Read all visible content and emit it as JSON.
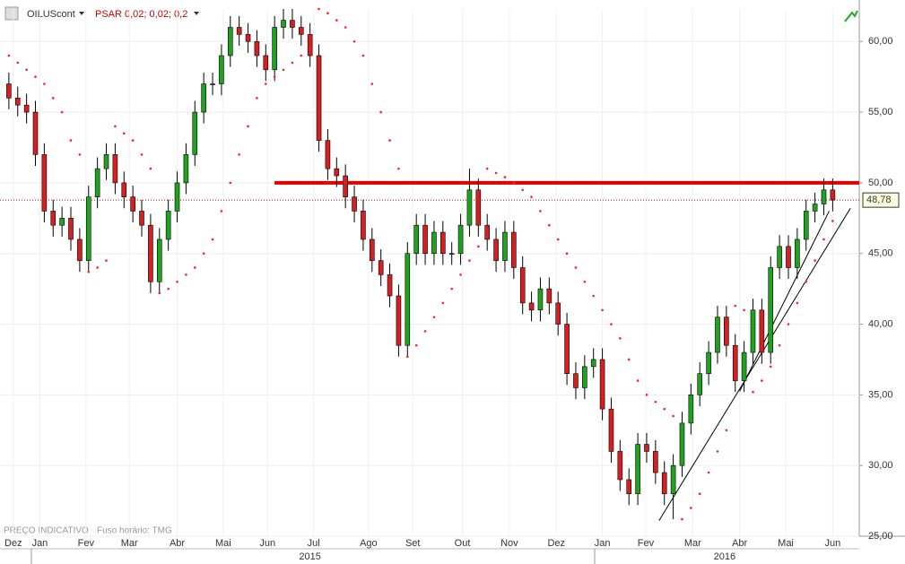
{
  "chart_data": {
    "type": "candlestick",
    "title": "OILUScont",
    "indicator": "PSAR 0,02; 0,02; 0,2",
    "note": "PREÇO INDICATIVO",
    "timezone": "Fuso horário: TMG",
    "x": [
      0,
      1,
      2,
      3,
      4,
      5,
      6,
      7,
      8,
      9,
      10,
      11,
      12,
      13,
      14,
      15,
      16,
      17,
      18,
      19,
      20,
      21,
      22,
      23,
      24,
      25,
      26,
      27,
      28,
      29,
      30,
      31,
      32,
      33,
      34,
      35,
      36,
      37,
      38,
      39,
      40,
      41,
      42,
      43,
      44,
      45,
      46,
      47,
      48,
      49,
      50,
      51,
      52,
      53,
      54,
      55,
      56,
      57,
      58,
      59,
      60,
      61,
      62,
      63,
      64,
      65,
      66,
      67,
      68,
      69,
      70,
      71,
      72,
      73,
      74,
      75,
      76,
      77,
      78,
      79,
      80,
      81,
      82,
      83,
      84,
      85,
      86,
      87,
      88,
      89,
      90,
      91,
      92,
      93
    ],
    "open": [
      57,
      56,
      55.5,
      55,
      52,
      48,
      47,
      47.5,
      46,
      44.5,
      49,
      51,
      52,
      50,
      49,
      48,
      47,
      43,
      46,
      48,
      50,
      52,
      55,
      57,
      57,
      59,
      61,
      60.5,
      60,
      59,
      58,
      61,
      61.5,
      61,
      60.5,
      59,
      53,
      51,
      50.5,
      49,
      48,
      46,
      44.5,
      43.5,
      42,
      38.5,
      45,
      47,
      45,
      46.5,
      45,
      45,
      47,
      49.5,
      47,
      46,
      44.5,
      46.5,
      44,
      41.5,
      41,
      42.5,
      41.5,
      40,
      36.5,
      35.5,
      37,
      37.5,
      34,
      31,
      29,
      28,
      31.5,
      31,
      29.5,
      28,
      30,
      33,
      35,
      36.5,
      38,
      40.5,
      38.5,
      36,
      38,
      41,
      38,
      44,
      45.5,
      44,
      46,
      48,
      48.5,
      49.5
    ],
    "high": [
      57.8,
      56.8,
      56.3,
      55.8,
      52.8,
      48.8,
      48.3,
      48.3,
      46.8,
      49.8,
      51.8,
      52.8,
      52.8,
      50.8,
      49.8,
      48.8,
      47.8,
      46.8,
      48.8,
      50.8,
      52.8,
      55.8,
      57.8,
      57.8,
      59.8,
      61.8,
      61.8,
      61.3,
      60.8,
      59.8,
      61.8,
      62.3,
      62.3,
      61.8,
      61.3,
      59.8,
      53.8,
      51.8,
      51.3,
      49.8,
      48.8,
      46.8,
      45.3,
      44.3,
      42.8,
      45.8,
      47.8,
      47.8,
      47.3,
      47.3,
      45.8,
      47.8,
      51,
      50.3,
      47.8,
      46.8,
      47.3,
      47.3,
      44.8,
      42.3,
      43.3,
      43.3,
      42.3,
      40.8,
      37.3,
      37.8,
      38.3,
      38.3,
      34.8,
      31.8,
      29.8,
      32.3,
      32.3,
      31.8,
      30.3,
      30.8,
      33.8,
      35.8,
      37.3,
      38.8,
      41.3,
      41.3,
      39.3,
      38.8,
      41.8,
      41.8,
      44.8,
      46.3,
      46.3,
      46.8,
      48.8,
      49.3,
      50.3,
      50.3
    ],
    "low": [
      55.2,
      54.7,
      54.2,
      51.2,
      47.2,
      46.2,
      46.2,
      45.2,
      43.7,
      43.7,
      48.2,
      50.2,
      49.2,
      48.2,
      47.2,
      46.2,
      42.2,
      42.2,
      45.2,
      47.2,
      49.2,
      51.2,
      54.2,
      56.2,
      56.2,
      58.2,
      59.7,
      59.2,
      58.2,
      57.2,
      57.2,
      60.2,
      60.2,
      59.7,
      58.2,
      52.2,
      50.2,
      49.7,
      48.2,
      47.2,
      45.2,
      43.7,
      42.7,
      41.2,
      37.7,
      37.7,
      44.2,
      44.2,
      44.2,
      44.2,
      44.2,
      44.2,
      46.2,
      46.2,
      45.2,
      43.7,
      43.7,
      43.2,
      40.7,
      40.2,
      40.2,
      40.7,
      39.2,
      35.7,
      34.7,
      34.7,
      36.2,
      33.2,
      30.2,
      28.2,
      27.2,
      27.2,
      30.2,
      28.7,
      27.2,
      26.2,
      29.2,
      32.2,
      34.2,
      35.7,
      37.2,
      37.7,
      35.2,
      35.2,
      37.2,
      37.2,
      37.2,
      43.2,
      43.2,
      43.2,
      45.2,
      47.2,
      47.7,
      47.98
    ],
    "close": [
      56,
      55.5,
      55,
      52,
      48,
      47,
      47.5,
      46,
      44.5,
      49,
      51,
      52,
      50,
      49,
      48,
      47,
      43,
      46,
      48,
      50,
      52,
      55,
      57,
      57,
      59,
      61,
      60.5,
      60,
      59,
      58,
      61,
      61.5,
      61,
      60.5,
      59,
      53,
      51,
      50.5,
      49,
      48,
      46,
      44.5,
      43.5,
      42,
      38.5,
      45,
      47,
      45,
      46.5,
      45,
      45,
      47,
      49.5,
      47,
      46,
      44.5,
      46.5,
      44,
      41.5,
      41,
      42.5,
      41.5,
      40,
      36.5,
      35.5,
      37,
      37.5,
      34,
      31,
      29,
      28,
      31.5,
      31,
      29.5,
      28,
      30,
      33,
      35,
      36.5,
      38,
      40.5,
      38.5,
      36,
      38,
      41,
      38,
      44,
      45.5,
      44,
      46,
      48,
      48.5,
      49.5,
      48.78
    ],
    "psar": [
      59,
      58.5,
      58,
      57.5,
      57,
      56,
      55,
      53,
      52,
      43.7,
      44,
      44.5,
      54,
      53.5,
      53,
      52,
      51,
      42.2,
      42.5,
      43,
      43.5,
      44,
      45,
      46,
      48,
      50,
      52,
      54,
      56,
      57,
      57.5,
      58,
      58.5,
      59,
      59.5,
      62.3,
      62,
      61.5,
      61,
      60,
      59,
      57,
      55,
      53,
      51,
      37.7,
      38.5,
      39.5,
      40.5,
      41.5,
      42.5,
      43.5,
      44.5,
      45.5,
      51,
      50.7,
      50.4,
      50,
      49.5,
      49,
      48,
      47,
      46,
      45,
      44,
      43,
      42,
      41,
      40,
      39,
      37.5,
      36,
      35,
      34.5,
      34,
      33.5,
      26.2,
      27,
      28,
      29.5,
      31,
      32.5,
      41.3,
      41,
      35.2,
      36,
      37,
      38.5,
      40,
      41.5,
      43,
      44.5,
      46,
      47.3
    ],
    "up_color": "#1fa31f",
    "down_color": "#d42020",
    "psar_color": "#ff2020",
    "xlim": [
      -1,
      96
    ],
    "ylim": [
      25,
      62.3
    ],
    "yticks": [
      {
        "value": 25,
        "label": "25,00"
      },
      {
        "value": 30,
        "label": "30,00"
      },
      {
        "value": 35,
        "label": "35,00"
      },
      {
        "value": 40,
        "label": "40,00"
      },
      {
        "value": 45,
        "label": "45,00"
      },
      {
        "value": 50,
        "label": "50,00"
      },
      {
        "value": 55,
        "label": "55,00"
      },
      {
        "value": 60,
        "label": "60,00"
      }
    ],
    "xticks": [
      {
        "value": 0.5,
        "label": "Dez"
      },
      {
        "value": 3.5,
        "label": "Jan"
      },
      {
        "value": 8.7,
        "label": "Fev"
      },
      {
        "value": 13.6,
        "label": "Mar"
      },
      {
        "value": 19,
        "label": "Abr"
      },
      {
        "value": 24.2,
        "label": "Mai"
      },
      {
        "value": 29.2,
        "label": "Jun"
      },
      {
        "value": 34.4,
        "label": "Jul"
      },
      {
        "value": 40.6,
        "label": "Ago"
      },
      {
        "value": 45.6,
        "label": "Set"
      },
      {
        "value": 51.2,
        "label": "Out"
      },
      {
        "value": 56.5,
        "label": "Nov"
      },
      {
        "value": 61.8,
        "label": "Dez"
      },
      {
        "value": 67,
        "label": "Jan"
      },
      {
        "value": 71.9,
        "label": "Fev"
      },
      {
        "value": 77.2,
        "label": "Mar"
      },
      {
        "value": 82.5,
        "label": "Abr"
      },
      {
        "value": 87.7,
        "label": "Mai"
      },
      {
        "value": 93,
        "label": "Jun"
      }
    ],
    "year_ticks": [
      {
        "value": 34,
        "label": "2015"
      },
      {
        "value": 80.8,
        "label": "2016"
      }
    ],
    "level": {
      "value": 50,
      "from": 30,
      "color": "#e00000"
    },
    "last_price": {
      "value": 48.78,
      "label": "48,78"
    },
    "trendlines": [
      {
        "x": [
          73.4,
          95
        ],
        "y": [
          26.1,
          48.2
        ]
      },
      {
        "x": [
          82.5,
          92.6
        ],
        "y": [
          35.25,
          48
        ]
      }
    ],
    "grid": true
  }
}
